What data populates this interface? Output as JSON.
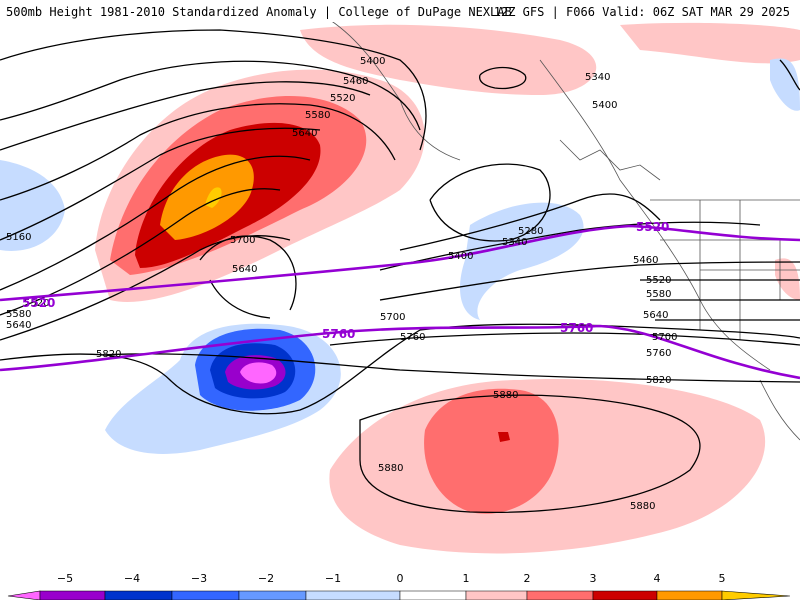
{
  "header": {
    "title": "500mb Height 1981-2010 Standardized Anomaly | College of DuPage NEXLAB",
    "run_info": "12Z GFS | F066 Valid: 06Z SAT MAR 29 2025"
  },
  "colors": {
    "anom_neg5": "#ff66ff",
    "anom_neg4": "#9900cc",
    "anom_neg3": "#0033cc",
    "anom_neg2": "#3366ff",
    "anom_neg1": "#c6dcff",
    "anom_pos1": "#ffc6c6",
    "anom_pos2": "#ff6e6e",
    "anom_pos3": "#cc0000",
    "anom_pos4": "#ff9900",
    "contour": "#000000",
    "highlight_contour": "#9400d3",
    "land_border": "#444444"
  },
  "map": {
    "contour_labels": [
      "5400",
      "5460",
      "5520",
      "5580",
      "5640",
      "5700",
      "5640",
      "5340",
      "5400",
      "5160",
      "5520",
      "5580",
      "5640",
      "5820",
      "5700",
      "5760",
      "5280",
      "5340",
      "5400",
      "5460",
      "5520",
      "5580",
      "5640",
      "5700",
      "5760",
      "5820",
      "5880",
      "5880",
      "5880"
    ],
    "highlight_labels": [
      "5520",
      "5760",
      "5520",
      "5760"
    ],
    "highlight_lines": [
      "5520 dam line",
      "5760 dam line"
    ]
  },
  "colorbar": {
    "ticks": [
      "−5",
      "−4",
      "−3",
      "−2",
      "−1",
      "0",
      "1",
      "2",
      "3",
      "4",
      "5"
    ],
    "bins": [
      "anom_neg5",
      "anom_neg4",
      "anom_neg3",
      "anom_neg2",
      "anom_neg1",
      "white",
      "anom_pos1",
      "anom_pos2",
      "anom_pos3",
      "anom_pos4",
      "anom_pos5"
    ]
  }
}
